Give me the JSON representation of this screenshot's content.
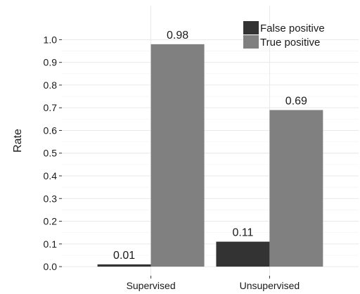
{
  "chart_data": {
    "type": "bar",
    "categories": [
      "Supervised",
      "Unsupervised"
    ],
    "series": [
      {
        "name": "False positive",
        "values": [
          0.01,
          0.11
        ],
        "labels": [
          "0.01",
          "0.11"
        ],
        "color": "#333333"
      },
      {
        "name": "True positive",
        "values": [
          0.98,
          0.69
        ],
        "labels": [
          "0.98",
          "0.69"
        ],
        "color": "#808080"
      }
    ],
    "ylabel": "Rate",
    "xlabel": "",
    "ylim": [
      -0.04,
      1.15
    ],
    "yticks": [
      0.0,
      0.1,
      0.2,
      0.3,
      0.4,
      0.5,
      0.6,
      0.7,
      0.8,
      0.9,
      1.0
    ],
    "ytick_labels": [
      "0.0",
      "0.1",
      "0.2",
      "0.3",
      "0.4",
      "0.5",
      "0.6",
      "0.7",
      "0.8",
      "0.9",
      "1.0"
    ],
    "grid": true,
    "legend_position": "top-right",
    "background": "#ffffff"
  }
}
